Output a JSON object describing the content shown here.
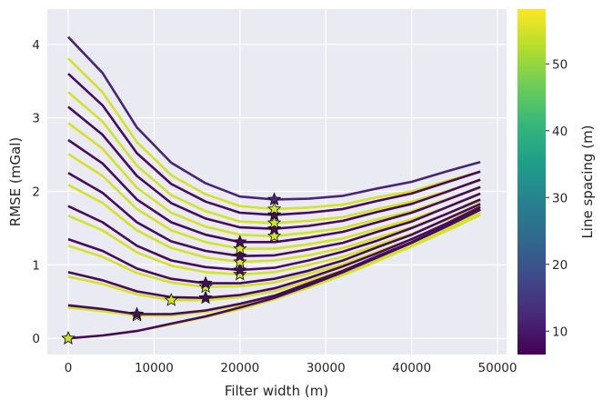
{
  "chart_data": {
    "type": "line",
    "xlabel": "Filter width (m)",
    "ylabel": "RMSE (mGal)",
    "xlim": [
      -2440,
      51060
    ],
    "ylim": [
      -0.22,
      4.48
    ],
    "xticks": [
      0,
      10000,
      20000,
      30000,
      40000,
      50000
    ],
    "yticks": [
      0,
      1,
      2,
      3,
      4
    ],
    "grid": true,
    "background": "#eaeaf2",
    "colormap": "viridis",
    "colorbar": {
      "label": "Line spacing (m)",
      "range": [
        6.5,
        58.2
      ],
      "ticks": [
        10,
        20,
        30,
        40,
        50
      ]
    },
    "markers": "star at minimum RMSE of each curve",
    "x": [
      0,
      4000,
      8000,
      12000,
      16000,
      20000,
      24000,
      28000,
      32000,
      36000,
      40000,
      44000,
      48000
    ],
    "series": [
      {
        "spacing": 8,
        "values": [
          0,
          0.04,
          0.1,
          0.2,
          0.3,
          0.42,
          0.55,
          0.72,
          0.9,
          1.1,
          1.3,
          1.52,
          1.75
        ]
      },
      {
        "spacing": 55,
        "values": [
          0,
          0.04,
          0.1,
          0.19,
          0.29,
          0.4,
          0.53,
          0.69,
          0.86,
          1.05,
          1.25,
          1.46,
          1.68
        ]
      },
      {
        "spacing": 55,
        "values": [
          0.42,
          0.37,
          0.31,
          0.31,
          0.36,
          0.45,
          0.56,
          0.71,
          0.88,
          1.07,
          1.26,
          1.47,
          1.69
        ]
      },
      {
        "spacing": 8,
        "values": [
          0.45,
          0.4,
          0.33,
          0.33,
          0.38,
          0.47,
          0.58,
          0.75,
          0.92,
          1.12,
          1.31,
          1.53,
          1.76
        ]
      },
      {
        "spacing": 55,
        "values": [
          0.84,
          0.74,
          0.6,
          0.52,
          0.52,
          0.56,
          0.64,
          0.78,
          0.93,
          1.11,
          1.29,
          1.5,
          1.71
        ]
      },
      {
        "spacing": 8,
        "values": [
          0.9,
          0.79,
          0.64,
          0.56,
          0.55,
          0.59,
          0.68,
          0.82,
          0.98,
          1.16,
          1.35,
          1.56,
          1.79
        ]
      },
      {
        "spacing": 55,
        "values": [
          1.26,
          1.11,
          0.89,
          0.76,
          0.7,
          0.71,
          0.76,
          0.88,
          1.01,
          1.18,
          1.35,
          1.55,
          1.75
        ]
      },
      {
        "spacing": 8,
        "values": [
          1.35,
          1.19,
          0.95,
          0.81,
          0.75,
          0.75,
          0.81,
          0.92,
          1.06,
          1.24,
          1.41,
          1.62,
          1.83
        ]
      },
      {
        "spacing": 55,
        "values": [
          1.67,
          1.47,
          1.17,
          0.99,
          0.9,
          0.87,
          0.9,
          1.0,
          1.11,
          1.27,
          1.42,
          1.61,
          1.81
        ]
      },
      {
        "spacing": 8,
        "values": [
          1.8,
          1.58,
          1.26,
          1.06,
          0.97,
          0.93,
          0.96,
          1.06,
          1.18,
          1.33,
          1.5,
          1.69,
          1.89
        ]
      },
      {
        "spacing": 55,
        "values": [
          2.09,
          1.84,
          1.47,
          1.23,
          1.1,
          1.04,
          1.06,
          1.13,
          1.23,
          1.37,
          1.51,
          1.69,
          1.87
        ]
      },
      {
        "spacing": 8,
        "values": [
          2.25,
          1.98,
          1.58,
          1.32,
          1.19,
          1.12,
          1.13,
          1.21,
          1.3,
          1.45,
          1.59,
          1.78,
          1.97
        ]
      },
      {
        "spacing": 55,
        "values": [
          2.51,
          2.21,
          1.76,
          1.47,
          1.31,
          1.22,
          1.22,
          1.28,
          1.36,
          1.49,
          1.62,
          1.78,
          1.96
        ]
      },
      {
        "spacing": 8,
        "values": [
          2.7,
          2.38,
          1.89,
          1.58,
          1.41,
          1.31,
          1.31,
          1.37,
          1.45,
          1.58,
          1.71,
          1.88,
          2.06
        ]
      },
      {
        "spacing": 55,
        "values": [
          2.93,
          2.58,
          2.05,
          1.71,
          1.52,
          1.41,
          1.39,
          1.44,
          1.5,
          1.62,
          1.73,
          1.89,
          2.05
        ]
      },
      {
        "spacing": 8,
        "values": [
          3.15,
          2.77,
          2.21,
          1.84,
          1.63,
          1.51,
          1.49,
          1.53,
          1.6,
          1.72,
          1.83,
          1.99,
          2.16
        ]
      },
      {
        "spacing": 55,
        "values": [
          3.35,
          2.95,
          2.35,
          1.95,
          1.73,
          1.59,
          1.57,
          1.6,
          1.65,
          1.76,
          1.86,
          2.0,
          2.15
        ]
      },
      {
        "spacing": 8,
        "values": [
          3.6,
          3.17,
          2.52,
          2.1,
          1.86,
          1.71,
          1.68,
          1.71,
          1.76,
          1.87,
          1.97,
          2.12,
          2.27
        ]
      },
      {
        "spacing": 55,
        "values": [
          3.81,
          3.35,
          2.67,
          2.22,
          1.96,
          1.8,
          1.76,
          1.78,
          1.82,
          1.92,
          2.0,
          2.14,
          2.27
        ]
      },
      {
        "spacing": 12,
        "values": [
          4.1,
          3.61,
          2.87,
          2.39,
          2.11,
          1.93,
          1.89,
          1.9,
          1.94,
          2.04,
          2.13,
          2.27,
          2.4
        ]
      }
    ]
  }
}
